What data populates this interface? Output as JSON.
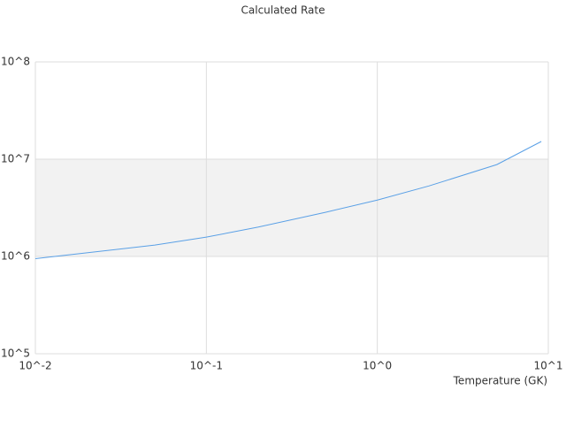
{
  "chart_data": {
    "type": "line",
    "title": "Calculated Rate",
    "x_label": "Temperature (GK)",
    "x": [
      0.01,
      0.02,
      0.05,
      0.1,
      0.2,
      0.5,
      1,
      2,
      5,
      9.1
    ],
    "series": [
      {
        "color": "#5aa0e6",
        "values": [
          950000,
          1090000,
          1310000,
          1580000,
          2000000,
          2850000,
          3800000,
          5300000,
          8800000,
          15200000
        ]
      }
    ],
    "xlim": [
      0.01,
      10
    ],
    "ylim": [
      100000,
      100000000
    ],
    "xticks": [
      {
        "value": 0.01,
        "label": "10^-2"
      },
      {
        "value": 0.1,
        "label": "10^-1"
      },
      {
        "value": 1,
        "label": "10^0"
      },
      {
        "value": 10,
        "label": "10^1"
      }
    ],
    "yticks": [
      {
        "value": 100000,
        "label": "10^5"
      },
      {
        "value": 1000000,
        "label": "10^6"
      },
      {
        "value": 10000000,
        "label": "10^7"
      },
      {
        "value": 100000000,
        "label": "10^8"
      }
    ],
    "xlog": true,
    "ylog": true,
    "grid": true,
    "band_color": "#f2f2f2"
  }
}
